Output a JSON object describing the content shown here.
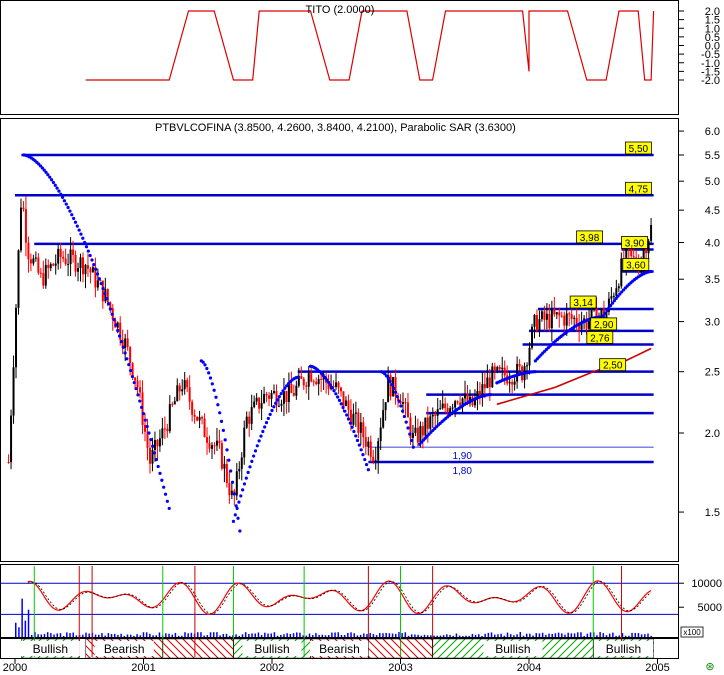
{
  "colors": {
    "panel_border": "#000000",
    "blue_line": "#0000cc",
    "sar_dot": "#0000ff",
    "up_candle": "#000000",
    "down_candle": "#ff0000",
    "ma_line": "#cc0000",
    "tito_line": "#dd0000",
    "stoch_fast": "#ff0000",
    "stoch_slow": "#000000",
    "label_bg": "#ffff00",
    "vertical_green": "#00cc00",
    "vertical_red": "#cc0000",
    "volume_bar": "#0000ff",
    "bullish_hatch": "#00aa00",
    "bearish_hatch": "#dd0000"
  },
  "tito": {
    "title": "TITO (2.0000)",
    "ticks": [
      "2.0",
      "1.5",
      "1.0",
      "0.5",
      "0.0",
      "-0.5",
      "-1.0",
      "-1.5",
      "-2.0"
    ]
  },
  "main": {
    "title": "PTBVLCOFINA (3.8500, 4.2600, 3.8400, 4.2100), Parabolic SAR (3.6300)",
    "ticks": [
      "6.0",
      "5.5",
      "5.0",
      "4.5",
      "4.0",
      "3.5",
      "3.0",
      "2.5",
      "2.0",
      "1.5"
    ],
    "boxed_labels": [
      "5,50",
      "4,75",
      "3,98",
      "3,90",
      "3,60",
      "3,14",
      "2,90",
      "2,76",
      "2,50"
    ],
    "plain_labels": [
      "1,90",
      "1,80"
    ]
  },
  "oscillator": {
    "ticks": [
      "10000",
      "5000"
    ]
  },
  "volume_scale": {
    "label": "x100"
  },
  "phases": [
    "Bullish",
    "Bearish",
    "Bullish",
    "Bearish",
    "Bullish",
    "Bullish"
  ],
  "x_axis": {
    "years": [
      "2000",
      "2001",
      "2002",
      "2003",
      "2004",
      "2005"
    ]
  },
  "chart_data": {
    "type": "line",
    "price_axis": {
      "scale": "log",
      "range": [
        1.3,
        6.2
      ]
    },
    "levels": [
      5.5,
      4.75,
      3.98,
      3.9,
      3.6,
      3.14,
      2.9,
      2.76,
      2.5,
      1.9,
      1.8
    ],
    "close_path": [
      {
        "t": 1999.95,
        "v": 1.8
      },
      {
        "t": 2000.05,
        "v": 4.8
      },
      {
        "t": 2000.1,
        "v": 3.9
      },
      {
        "t": 2000.2,
        "v": 3.5
      },
      {
        "t": 2000.35,
        "v": 3.8
      },
      {
        "t": 2000.55,
        "v": 3.7
      },
      {
        "t": 2000.7,
        "v": 3.3
      },
      {
        "t": 2000.85,
        "v": 2.8
      },
      {
        "t": 2000.95,
        "v": 2.4
      },
      {
        "t": 2001.05,
        "v": 1.8
      },
      {
        "t": 2001.15,
        "v": 2.0
      },
      {
        "t": 2001.3,
        "v": 2.4
      },
      {
        "t": 2001.45,
        "v": 2.05
      },
      {
        "t": 2001.6,
        "v": 1.85
      },
      {
        "t": 2001.7,
        "v": 1.55
      },
      {
        "t": 2001.8,
        "v": 2.1
      },
      {
        "t": 2001.95,
        "v": 2.3
      },
      {
        "t": 2002.15,
        "v": 2.3
      },
      {
        "t": 2002.3,
        "v": 2.5
      },
      {
        "t": 2002.5,
        "v": 2.35
      },
      {
        "t": 2002.7,
        "v": 2.0
      },
      {
        "t": 2002.8,
        "v": 1.85
      },
      {
        "t": 2002.9,
        "v": 2.4
      },
      {
        "t": 2003.0,
        "v": 2.3
      },
      {
        "t": 2003.1,
        "v": 1.95
      },
      {
        "t": 2003.25,
        "v": 2.1
      },
      {
        "t": 2003.45,
        "v": 2.3
      },
      {
        "t": 2003.55,
        "v": 2.2
      },
      {
        "t": 2003.7,
        "v": 2.45
      },
      {
        "t": 2003.95,
        "v": 2.5
      },
      {
        "t": 2004.05,
        "v": 3.0
      },
      {
        "t": 2004.25,
        "v": 3.05
      },
      {
        "t": 2004.45,
        "v": 3.0
      },
      {
        "t": 2004.6,
        "v": 3.1
      },
      {
        "t": 2004.75,
        "v": 3.8
      },
      {
        "t": 2004.85,
        "v": 3.7
      },
      {
        "t": 2004.95,
        "v": 4.21
      }
    ],
    "moving_average": [
      {
        "t": 2003.75,
        "v": 2.22
      },
      {
        "t": 2004.2,
        "v": 2.36
      },
      {
        "t": 2004.5,
        "v": 2.5
      },
      {
        "t": 2004.75,
        "v": 2.6
      },
      {
        "t": 2004.95,
        "v": 2.72
      }
    ],
    "parabolic_sar_last": 3.63,
    "tito_last": 2.0
  }
}
